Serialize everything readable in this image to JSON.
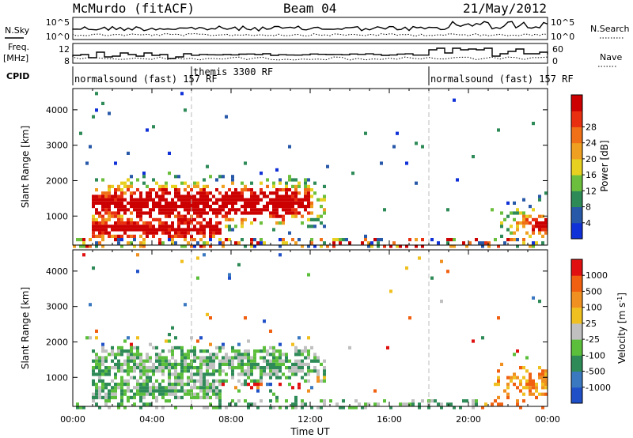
{
  "header": {
    "station": "McMurdo (fitACF)",
    "beam": "Beam 04",
    "date": "21/May/2012"
  },
  "left_labels": {
    "nsky": "N.Sky",
    "freq_line1": "Freq.",
    "freq_line2": "[MHz]",
    "cpid": "CPID"
  },
  "right_labels": {
    "nsearch": "N.Search",
    "nave": "Nave"
  },
  "noise_panel": {
    "left_ticks": [
      "10^5",
      "10^0"
    ],
    "right_ticks": [
      "10^5",
      "10^0"
    ]
  },
  "freq_panel": {
    "left_ticks": [
      "12",
      "8"
    ],
    "right_ticks": [
      "60",
      "0"
    ]
  },
  "cpid_segments": [
    {
      "label": "normalsound (fast) 157 RF",
      "start_hour": 0,
      "end_hour": 6
    },
    {
      "label": "themis 3300 RF",
      "start_hour": 6,
      "end_hour": 18
    },
    {
      "label": "normalsound (fast) 157 RF",
      "start_hour": 18,
      "end_hour": 24
    }
  ],
  "chart_data": [
    {
      "type": "heatmap",
      "name": "Power",
      "ylabel": "Slant Range [km]",
      "xlim": [
        "00:00",
        "24:00"
      ],
      "ylim": [
        180,
        4600
      ],
      "yticks": [
        "1000",
        "2000",
        "3000",
        "4000"
      ],
      "colorbar": {
        "label": "Power [dB]",
        "ticks": [
          "4",
          "8",
          "12",
          "16",
          "20",
          "24",
          "28"
        ],
        "colors": [
          "#1030d8",
          "#2858a8",
          "#2e8b57",
          "#6cbf3c",
          "#e8d020",
          "#f0a020",
          "#f07018",
          "#e83010",
          "#cc0000"
        ]
      }
    },
    {
      "type": "heatmap",
      "name": "Velocity",
      "ylabel": "Slant Range [km]",
      "xlabel": "Time UT",
      "xlim": [
        "00:00",
        "24:00"
      ],
      "ylim": [
        180,
        4600
      ],
      "xticks": [
        "00:00",
        "04:00",
        "08:00",
        "12:00",
        "16:00",
        "20:00",
        "00:00"
      ],
      "yticks": [
        "1000",
        "2000",
        "3000",
        "4000"
      ],
      "colorbar": {
        "label": "Velocity [m s^-1]",
        "ticks": [
          "1000",
          "500",
          "100",
          "25",
          "-25",
          "-100",
          "-500",
          "-1000"
        ],
        "colors": [
          "#2050c8",
          "#3a78c0",
          "#2e8b57",
          "#5cbf3c",
          "#c0c0c0",
          "#f0c020",
          "#f09020",
          "#f06010",
          "#e01010"
        ]
      }
    }
  ]
}
